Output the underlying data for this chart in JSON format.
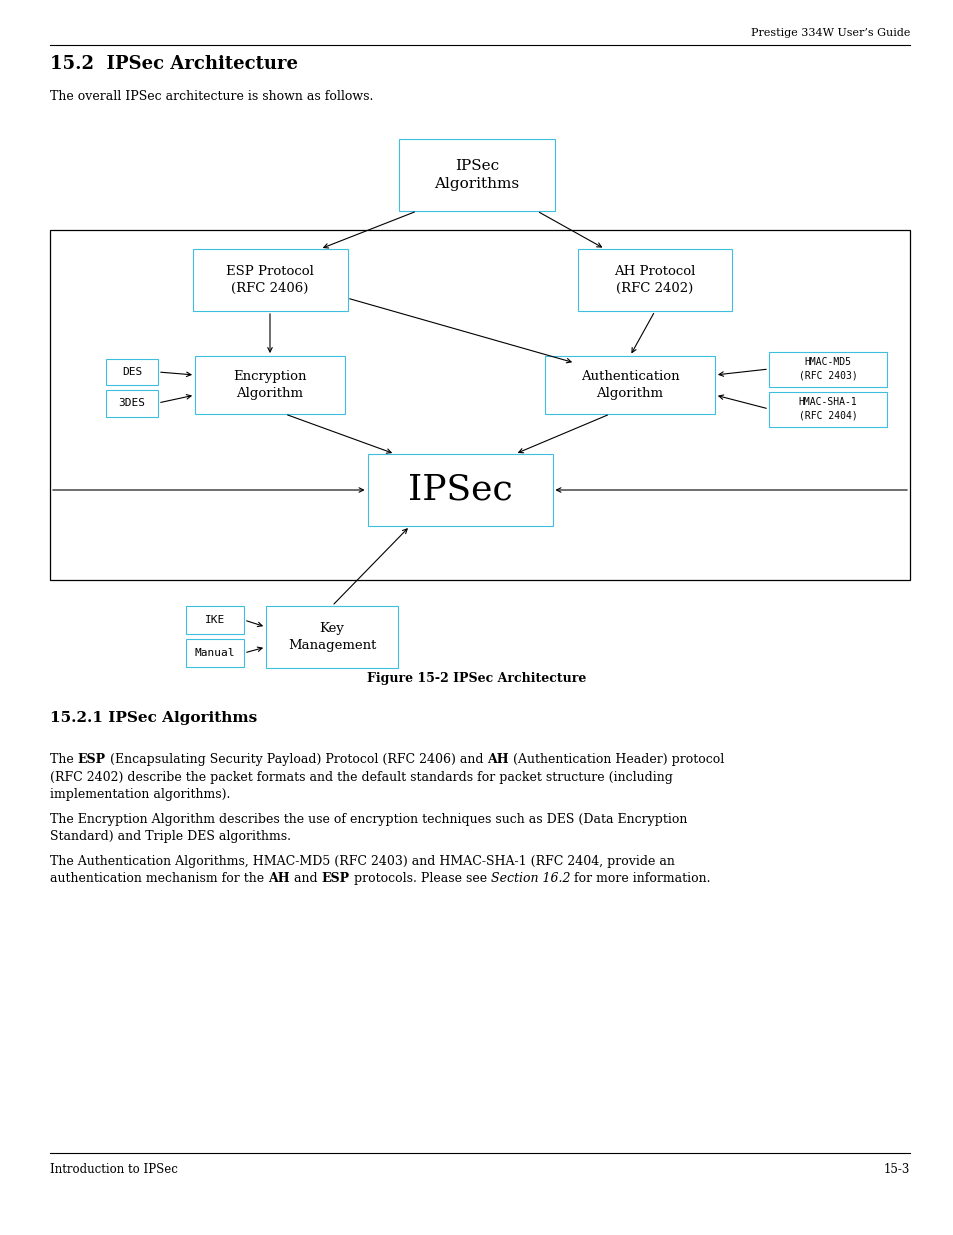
{
  "page_title": "Prestige 334W User’s Guide",
  "section_title": "15.2  IPSec Architecture",
  "intro_text": "The overall IPSec architecture is shown as follows.",
  "figure_caption": "Figure 15-2 IPSec Architecture",
  "section2_title": "15.2.1 IPSec Algorithms",
  "footer_left": "Introduction to IPSec",
  "footer_right": "15-3",
  "bg_color": "#ffffff",
  "box_border_color": "#3fbfdf",
  "arrow_color": "#000000"
}
